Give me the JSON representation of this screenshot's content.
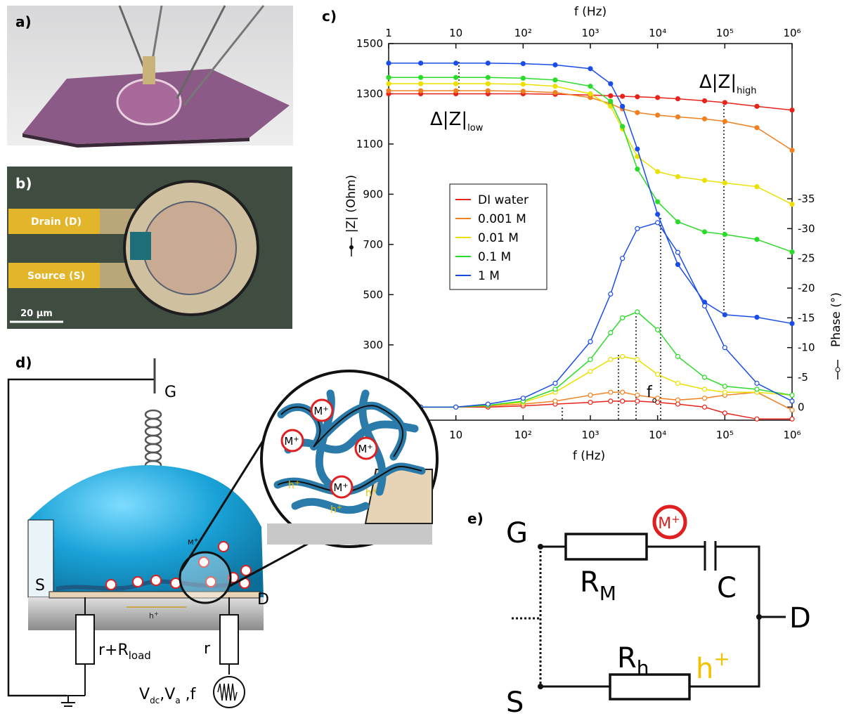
{
  "panels": {
    "a": {
      "label": "a)"
    },
    "b": {
      "label": "b)",
      "drain": "Drain (D)",
      "source": "Source (S)",
      "scale": "20 μm"
    },
    "c": {
      "label": "c)"
    },
    "d": {
      "label": "d)",
      "gate": "G",
      "source": "S",
      "drain": "D",
      "hole": {
        "text": "h",
        "sup": "+"
      },
      "ion": {
        "text": "M",
        "sup": "+"
      },
      "r_load": {
        "text": "r+R",
        "sub": "load"
      },
      "r": "r",
      "signal": {
        "v1": "V",
        "v1_sub": "dc",
        "v2": ",V",
        "v2_sub": "a",
        "f": " ,f"
      }
    },
    "e": {
      "label": "e)",
      "gate": "G",
      "source": "S",
      "drain": "D",
      "rm": {
        "text": "R",
        "sub": "M"
      },
      "c": "C",
      "rh": {
        "text": "R",
        "sub": "h"
      },
      "hole": {
        "text": "h",
        "sup": "+"
      },
      "ion": {
        "text": "M",
        "sup": "+"
      }
    }
  },
  "chart_data": {
    "type": "line",
    "x_label": "f (Hz)",
    "y_label": "|Z| (Ohm)",
    "y2_label": "Phase (°)",
    "xlog": true,
    "xlim": [
      1,
      1000000
    ],
    "xticks": [
      1,
      10,
      {
        "value": 100,
        "label": "10²"
      },
      {
        "value": 1000,
        "label": "10³"
      },
      {
        "value": 10000,
        "label": "10⁴"
      },
      {
        "value": 100000,
        "label": "10⁵"
      },
      {
        "value": 1000000,
        "label": "10⁶"
      }
    ],
    "ylim": [
      0,
      1500
    ],
    "yticks": [
      300,
      500,
      700,
      900,
      1100,
      1300,
      1500
    ],
    "y2lim": [
      2.2,
      -61.1
    ],
    "y2ticks": [
      0,
      -5,
      -10,
      -15,
      -20,
      -25,
      -30,
      -35
    ],
    "legend": "center-left",
    "annotations": {
      "dz_low": {
        "text": "Δ|Z|",
        "sub": "low"
      },
      "dz_high": {
        "text": "Δ|Z|",
        "sub": "high"
      },
      "f0": {
        "text": "f",
        "sub": "o"
      }
    },
    "x": [
      1,
      3,
      10,
      30,
      100,
      300,
      1000,
      2000,
      3000,
      5000,
      10000,
      20000,
      50000,
      100000,
      300000,
      1000000
    ],
    "series": [
      {
        "name": "DI water",
        "color": "#e8231a",
        "values": [
          1300,
          1300,
          1300,
          1300,
          1300,
          1298,
          1295,
          1292,
          1290,
          1288,
          1285,
          1280,
          1272,
          1265,
          1250,
          1235
        ],
        "phase": [
          0,
          0,
          0,
          0,
          -0.2,
          -0.5,
          -0.8,
          -1,
          -1,
          -1,
          -0.8,
          -0.5,
          0,
          1,
          2,
          2
        ]
      },
      {
        "name": "0.001 M",
        "color": "#f08020",
        "values": [
          1312,
          1312,
          1312,
          1312,
          1310,
          1305,
          1285,
          1260,
          1240,
          1225,
          1215,
          1208,
          1200,
          1190,
          1165,
          1075
        ],
        "phase": [
          0,
          0,
          0,
          -0.2,
          -0.5,
          -1,
          -2,
          -2.5,
          -2.5,
          -2,
          -1.5,
          -1.2,
          -1.5,
          -2,
          -2.5,
          0.5
        ]
      },
      {
        "name": "0.01 M",
        "color": "#ece000",
        "values": [
          1340,
          1340,
          1340,
          1340,
          1338,
          1330,
          1300,
          1250,
          1160,
          1050,
          990,
          970,
          955,
          945,
          930,
          860
        ],
        "phase": [
          0,
          0,
          0,
          -0.3,
          -0.8,
          -2.5,
          -6,
          -8,
          -8.5,
          -8,
          -5.5,
          -4,
          -3,
          -2.5,
          -2.5,
          -2
        ]
      },
      {
        "name": "0.1 M",
        "color": "#2adb2a",
        "values": [
          1365,
          1365,
          1365,
          1365,
          1362,
          1355,
          1330,
          1270,
          1170,
          1000,
          870,
          790,
          750,
          740,
          720,
          670
        ],
        "phase": [
          0,
          0,
          0,
          -0.3,
          -1,
          -3,
          -8,
          -12.5,
          -15,
          -16,
          -13,
          -8.5,
          -5,
          -3.5,
          -3,
          -2
        ]
      },
      {
        "name": "1 M",
        "color": "#1a4de8",
        "values": [
          1422,
          1422,
          1422,
          1422,
          1420,
          1415,
          1400,
          1340,
          1250,
          1080,
          820,
          620,
          470,
          420,
          410,
          385
        ],
        "phase": [
          0,
          0,
          0,
          -0.5,
          -1.5,
          -4,
          -11,
          -19,
          -25,
          -30,
          -31,
          -26,
          -17,
          -10,
          -4,
          -1
        ]
      }
    ]
  }
}
